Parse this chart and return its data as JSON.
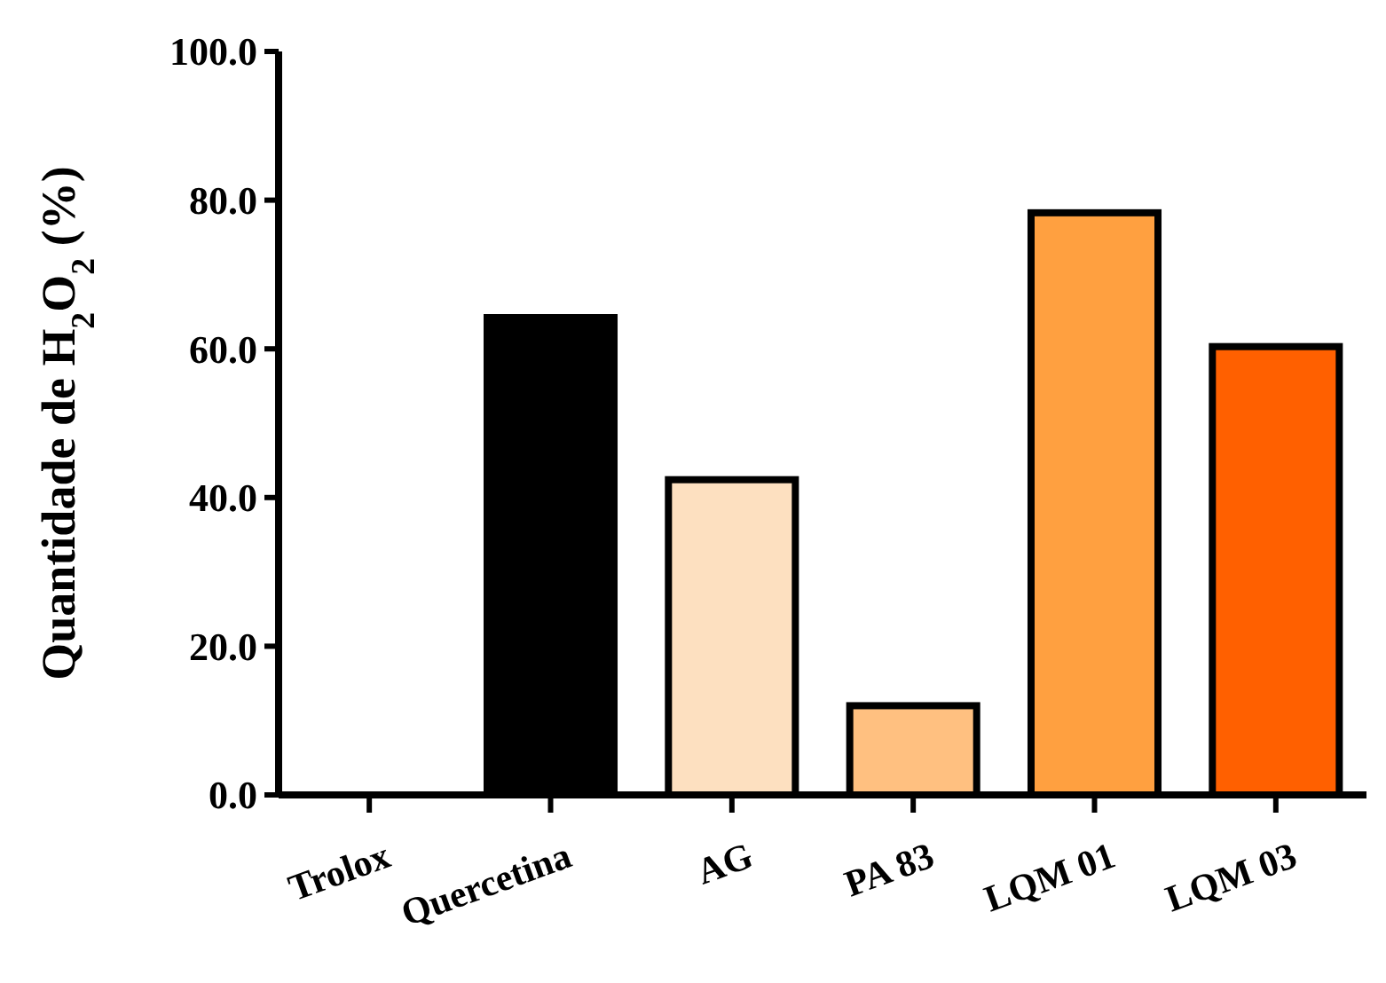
{
  "chart_data": {
    "type": "bar",
    "ylabel": "Quantidade de H$_{2}$O$_{2}$ (%)",
    "categories": [
      "Trolox",
      "Quercetina",
      "AG",
      "PA 83",
      "LQM 01",
      "LQM 03"
    ],
    "values": [
      0,
      64.2,
      42.4,
      12.0,
      78.3,
      60.3
    ],
    "colors": [
      "#ffffff",
      "#000000",
      "#fde0c0",
      "#ffc080",
      "#ffa040",
      "#ff6000"
    ],
    "ylim": [
      0,
      100
    ],
    "yticks": [
      {
        "value": 0,
        "label": "0.0"
      },
      {
        "value": 20,
        "label": "20.0"
      },
      {
        "value": 40,
        "label": "40.0"
      },
      {
        "value": 60,
        "label": "60.0"
      },
      {
        "value": 80,
        "label": "80.0"
      },
      {
        "value": 100,
        "label": "100.0"
      }
    ]
  }
}
